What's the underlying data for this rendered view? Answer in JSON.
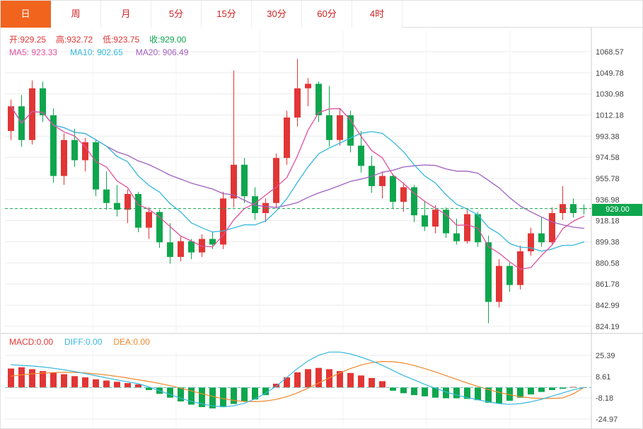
{
  "tabs": {
    "items": [
      {
        "label": "日",
        "active": true
      },
      {
        "label": "周",
        "active": false
      },
      {
        "label": "月",
        "active": false
      },
      {
        "label": "5分",
        "active": false
      },
      {
        "label": "15分",
        "active": false
      },
      {
        "label": "30分",
        "active": false
      },
      {
        "label": "60分",
        "active": false
      },
      {
        "label": "4时",
        "active": false
      }
    ]
  },
  "ohlc": {
    "open": "开:929.25",
    "high": "高:932.72",
    "low": "低:923.75",
    "close": "收:929.00"
  },
  "ma_labels": {
    "ma5": "MA5: 923.33",
    "ma10": "MA10: 902.65",
    "ma20": "MA20: 906.49"
  },
  "macd_labels": {
    "macd": "MACD:0.00",
    "diff": "DIFF:0.00",
    "dea": "DEA:0.00"
  },
  "price_tag": {
    "value": "929.00"
  },
  "colors": {
    "up": "#e23535",
    "down": "#0ea64d",
    "ma5": "#e0509e",
    "ma10": "#35b8dc",
    "ma20": "#a05fc0",
    "dea": "#f0882c",
    "tag_bg": "#0ea64d",
    "grid": "#ebebeb",
    "vgrid": "#f3f3f3",
    "axis_text": "#444444",
    "border": "#cccccc",
    "zero_dash": "#63bdbd",
    "tab_active_bg": "#f0641e"
  },
  "chart_data": [
    {
      "type": "candlestick",
      "period": "日",
      "y_ticks": [
        1068.57,
        1049.78,
        1030.98,
        1012.18,
        993.38,
        974.58,
        955.78,
        936.98,
        918.18,
        899.38,
        880.58,
        861.78,
        842.99,
        824.19
      ],
      "last_close": 929.0,
      "ohlc": {
        "open": 929.25,
        "high": 932.72,
        "low": 923.75,
        "close": 929.0
      },
      "ma": {
        "ma5": 923.33,
        "ma10": 902.65,
        "ma20": 906.49
      },
      "up_rule": "close>=open is red (up), close<open is green (down)",
      "candles": [
        [
          998,
          1026,
          990,
          1020
        ],
        [
          1020,
          1030,
          984,
          990
        ],
        [
          990,
          1043,
          986,
          1036
        ],
        [
          1036,
          1042,
          1006,
          1012
        ],
        [
          1012,
          1018,
          952,
          958
        ],
        [
          958,
          996,
          950,
          990
        ],
        [
          990,
          1000,
          966,
          972
        ],
        [
          972,
          992,
          962,
          988
        ],
        [
          988,
          990,
          940,
          946
        ],
        [
          946,
          962,
          928,
          934
        ],
        [
          934,
          950,
          922,
          928
        ],
        [
          928,
          946,
          916,
          942
        ],
        [
          942,
          944,
          908,
          912
        ],
        [
          912,
          930,
          902,
          926
        ],
        [
          926,
          928,
          894,
          899
        ],
        [
          899,
          916,
          880,
          886
        ],
        [
          886,
          904,
          882,
          900
        ],
        [
          900,
          902,
          884,
          890
        ],
        [
          890,
          906,
          886,
          902
        ],
        [
          902,
          908,
          893,
          897
        ],
        [
          897,
          944,
          893,
          938
        ],
        [
          938,
          1052,
          930,
          968
        ],
        [
          968,
          974,
          934,
          940
        ],
        [
          940,
          948,
          919,
          925
        ],
        [
          925,
          938,
          917,
          934
        ],
        [
          934,
          978,
          929,
          974
        ],
        [
          974,
          1016,
          968,
          1010
        ],
        [
          1010,
          1062,
          1002,
          1036
        ],
        [
          1036,
          1045,
          1020,
          1040
        ],
        [
          1040,
          1042,
          1006,
          1012
        ],
        [
          1012,
          1038,
          984,
          990
        ],
        [
          990,
          1018,
          985,
          1012
        ],
        [
          1012,
          1016,
          979,
          985
        ],
        [
          985,
          998,
          961,
          967
        ],
        [
          967,
          976,
          943,
          949
        ],
        [
          949,
          962,
          938,
          958
        ],
        [
          958,
          960,
          929,
          935
        ],
        [
          935,
          952,
          926,
          948
        ],
        [
          948,
          950,
          917,
          923
        ],
        [
          923,
          936,
          909,
          913
        ],
        [
          913,
          932,
          907,
          928
        ],
        [
          928,
          930,
          903,
          907
        ],
        [
          907,
          920,
          897,
          900
        ],
        [
          900,
          928,
          898,
          924
        ],
        [
          924,
          926,
          895,
          899
        ],
        [
          899,
          905,
          827,
          846
        ],
        [
          846,
          884,
          841,
          878
        ],
        [
          878,
          881,
          855,
          861
        ],
        [
          861,
          896,
          857,
          891
        ],
        [
          891,
          912,
          887,
          907
        ],
        [
          907,
          921,
          895,
          899
        ],
        [
          899,
          930,
          897,
          925
        ],
        [
          925,
          949,
          919,
          933
        ],
        [
          933,
          938,
          921,
          925
        ],
        [
          929.25,
          932.72,
          923.75,
          929.0
        ]
      ]
    },
    {
      "type": "macd",
      "y_ticks": [
        25.39,
        8.61,
        -8.18,
        -24.97
      ],
      "macd": 0.0,
      "diff": 0.0,
      "dea": 0.0,
      "hist": [
        15,
        16,
        14.5,
        13,
        12,
        10.5,
        9,
        8,
        6.5,
        5.5,
        4.5,
        3.5,
        2.5,
        -2,
        -5,
        -8,
        -11,
        -13.5,
        -15.5,
        -16.5,
        -15.5,
        -13,
        -11,
        -9.5,
        -6,
        3,
        8,
        12,
        14.5,
        15.5,
        14.5,
        13,
        11.5,
        9.5,
        7.5,
        5,
        -2.5,
        -4.5,
        -6,
        -7,
        -8,
        -8.5,
        -8.5,
        -9,
        -10,
        -12,
        -12.5,
        -10.5,
        -8,
        -5.5,
        -3.5,
        -2,
        -1,
        0.5,
        0
      ],
      "diff_line": [
        18,
        17.5,
        17,
        16.2,
        15.2,
        14,
        12.6,
        11,
        9.4,
        7.6,
        6,
        4.5,
        3,
        0.5,
        -2.5,
        -5.5,
        -8.5,
        -11,
        -13,
        -14.5,
        -15.2,
        -14.5,
        -12.5,
        -9,
        -4.5,
        1,
        8,
        15,
        21,
        25.5,
        28,
        28,
        26.5,
        24,
        21,
        17.5,
        13.5,
        9.5,
        6,
        2.5,
        -0.5,
        -3.5,
        -6,
        -8,
        -9.7,
        -11.3,
        -12.7,
        -13.3,
        -12.7,
        -11.3,
        -9.3,
        -6.8,
        -4.3,
        -1.8,
        0
      ],
      "dea_line": [
        9,
        10,
        10.8,
        11.4,
        11.8,
        12,
        11.9,
        11.5,
        10.8,
        9.9,
        8.8,
        7.5,
        6.1,
        4.7,
        3.2,
        1.5,
        -0.5,
        -2.7,
        -4.9,
        -7,
        -8.8,
        -10.2,
        -11,
        -11.2,
        -10.7,
        -9.4,
        -7.2,
        -4.2,
        -0.5,
        3.5,
        7.6,
        11.5,
        15,
        17.8,
        19.7,
        20.6,
        20.4,
        19.3,
        17.4,
        15,
        12.3,
        9.4,
        6.5,
        3.6,
        0.9,
        -1.6,
        -3.8,
        -5.7,
        -7.2,
        -8.2,
        -8.7,
        -8.7,
        -8.2,
        -5,
        0
      ]
    }
  ]
}
